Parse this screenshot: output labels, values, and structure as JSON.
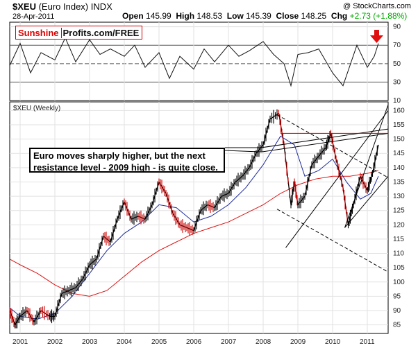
{
  "header": {
    "symbol": "$XEU",
    "name": "(Euro Index)",
    "exchange": "INDX",
    "date": "28-Apr-2011",
    "watermark": "@ StockCharts.com",
    "open_label": "Open",
    "open": "145.99",
    "high_label": "High",
    "high": "148.53",
    "low_label": "Low",
    "low": "145.39",
    "close_label": "Close",
    "close": "148.25",
    "chg_label": "Chg",
    "chg": "+2.73 (+1.88%)",
    "chg_color": "#00aa00"
  },
  "brand": {
    "part1": "Sunshine",
    "part2": "Profits.com/FREE"
  },
  "price_panel_label": "$XEU (Weekly)",
  "annotation": "Euro moves sharply higher, but the next resistance level - 2009 high - is quite close.",
  "colors": {
    "price": "#000000",
    "up_bar": "#000000",
    "down_bar": "#cc0000",
    "ma_short": "#1c2a9c",
    "ma_long": "#dd1111",
    "arrow": "#e01010"
  },
  "chart_data": [
    {
      "type": "line",
      "panel": "RSI",
      "y_ticks": [
        10,
        30,
        50,
        70,
        90
      ],
      "ylim": [
        10,
        95
      ],
      "reference_lines": [
        30,
        50,
        70
      ],
      "x": [
        2000.7,
        2001.0,
        2001.3,
        2001.6,
        2002.0,
        2002.3,
        2002.6,
        2003.0,
        2003.3,
        2003.6,
        2004.0,
        2004.3,
        2004.6,
        2005.0,
        2005.3,
        2005.6,
        2006.0,
        2006.3,
        2006.6,
        2007.0,
        2007.3,
        2007.6,
        2008.0,
        2008.3,
        2008.6,
        2008.8,
        2009.0,
        2009.3,
        2009.6,
        2010.0,
        2010.3,
        2010.5,
        2010.7,
        2011.0,
        2011.2,
        2011.32
      ],
      "values": [
        48,
        72,
        40,
        62,
        54,
        78,
        52,
        76,
        60,
        66,
        58,
        70,
        46,
        62,
        34,
        58,
        44,
        66,
        52,
        70,
        58,
        64,
        74,
        60,
        50,
        26,
        60,
        62,
        66,
        40,
        26,
        48,
        70,
        46,
        58,
        72
      ]
    },
    {
      "type": "line",
      "panel": "Price",
      "title": "$XEU (Weekly)",
      "x_ticks": [
        "2001",
        "2002",
        "2003",
        "2004",
        "2005",
        "2006",
        "2007",
        "2008",
        "2009",
        "2010",
        "2011"
      ],
      "y_ticks": [
        85,
        90,
        95,
        100,
        105,
        110,
        115,
        120,
        125,
        130,
        135,
        140,
        145,
        150,
        155,
        160
      ],
      "xlim": [
        2000.7,
        2011.6
      ],
      "ylim": [
        82,
        163
      ],
      "series": [
        {
          "x": [
            2000.7,
            2000.85,
            2001.0,
            2001.2,
            2001.4,
            2001.6,
            2001.85,
            2002.0,
            2002.2,
            2002.4,
            2002.6,
            2002.8,
            2003.0,
            2003.2,
            2003.4,
            2003.6,
            2003.8,
            2004.0,
            2004.2,
            2004.4,
            2004.6,
            2004.8,
            2005.0,
            2005.2,
            2005.4,
            2005.6,
            2005.8,
            2006.0,
            2006.2,
            2006.4,
            2006.6,
            2006.8,
            2007.0,
            2007.2,
            2007.4,
            2007.6,
            2007.8,
            2008.0,
            2008.2,
            2008.45,
            2008.6,
            2008.8,
            2008.9,
            2009.0,
            2009.2,
            2009.4,
            2009.6,
            2009.8,
            2009.95,
            2010.1,
            2010.3,
            2010.45,
            2010.6,
            2010.8,
            2011.0,
            2011.15,
            2011.32
          ],
          "values": [
            90,
            85,
            88,
            90,
            86,
            90,
            88,
            88,
            96,
            97,
            98,
            101,
            106,
            108,
            116,
            114,
            122,
            128,
            122,
            123,
            122,
            127,
            135,
            131,
            124,
            120,
            119,
            118,
            125,
            127,
            126,
            130,
            131,
            135,
            137,
            140,
            145,
            148,
            157,
            159,
            148,
            127,
            135,
            127,
            130,
            141,
            144,
            147,
            152,
            143,
            133,
            120,
            127,
            137,
            132,
            138,
            148
          ]
        },
        {
          "name": "",
          "x": [
            2000.7,
            2001.0,
            2001.5,
            2002.0,
            2002.5,
            2003.0,
            2003.5,
            2004.0,
            2004.5,
            2005.0,
            2005.5,
            2006.0,
            2006.5,
            2007.0,
            2007.5,
            2008.0,
            2008.5,
            2008.9,
            2009.2,
            2009.6,
            2010.0,
            2010.4,
            2010.8,
            2011.1,
            2011.32
          ],
          "values": [
            91,
            88,
            87,
            89,
            95,
            103,
            111,
            117,
            121,
            127,
            126,
            121,
            123,
            127,
            133,
            141,
            151,
            148,
            137,
            139,
            143,
            135,
            129,
            131,
            137
          ]
        },
        {
          "name": "",
          "x": [
            2000.7,
            2001.0,
            2001.5,
            2002.0,
            2002.5,
            2003.0,
            2003.5,
            2004.0,
            2004.5,
            2005.0,
            2005.5,
            2006.0,
            2006.5,
            2007.0,
            2007.5,
            2008.0,
            2008.5,
            2009.0,
            2009.5,
            2010.0,
            2010.5,
            2011.0,
            2011.32
          ],
          "values": [
            108,
            106,
            103,
            99,
            96,
            95,
            97,
            102,
            107,
            111,
            114,
            117,
            119,
            121,
            124,
            127,
            131,
            134,
            136,
            137,
            137,
            138,
            139
          ]
        }
      ],
      "trendlines": [
        {
          "x": [
            2008.4,
            2011.6
          ],
          "values": [
            158.5,
            136.5
          ],
          "style": "dashed"
        },
        {
          "x": [
            2008.4,
            2011.6
          ],
          "values": [
            125.5,
            103.5
          ],
          "style": "dashed"
        },
        {
          "x": [
            2010.35,
            2011.6
          ],
          "values": [
            119,
            162
          ],
          "style": "solid"
        },
        {
          "x": [
            2010.35,
            2011.6
          ],
          "values": [
            119,
            137
          ],
          "style": "solid"
        },
        {
          "x": [
            2008.65,
            2011.6
          ],
          "values": [
            112,
            160
          ],
          "style": "solid"
        },
        {
          "x": [
            2007.95,
            2011.6
          ],
          "values": [
            145.5,
            152
          ],
          "style": "solid"
        },
        {
          "x": [
            2007.95,
            2011.6
          ],
          "values": [
            147,
            153.5
          ],
          "style": "solid"
        },
        {
          "x": [
            2008.5,
            2011.6
          ],
          "values": [
            152,
            152
          ],
          "style": "solid-red"
        }
      ]
    }
  ]
}
